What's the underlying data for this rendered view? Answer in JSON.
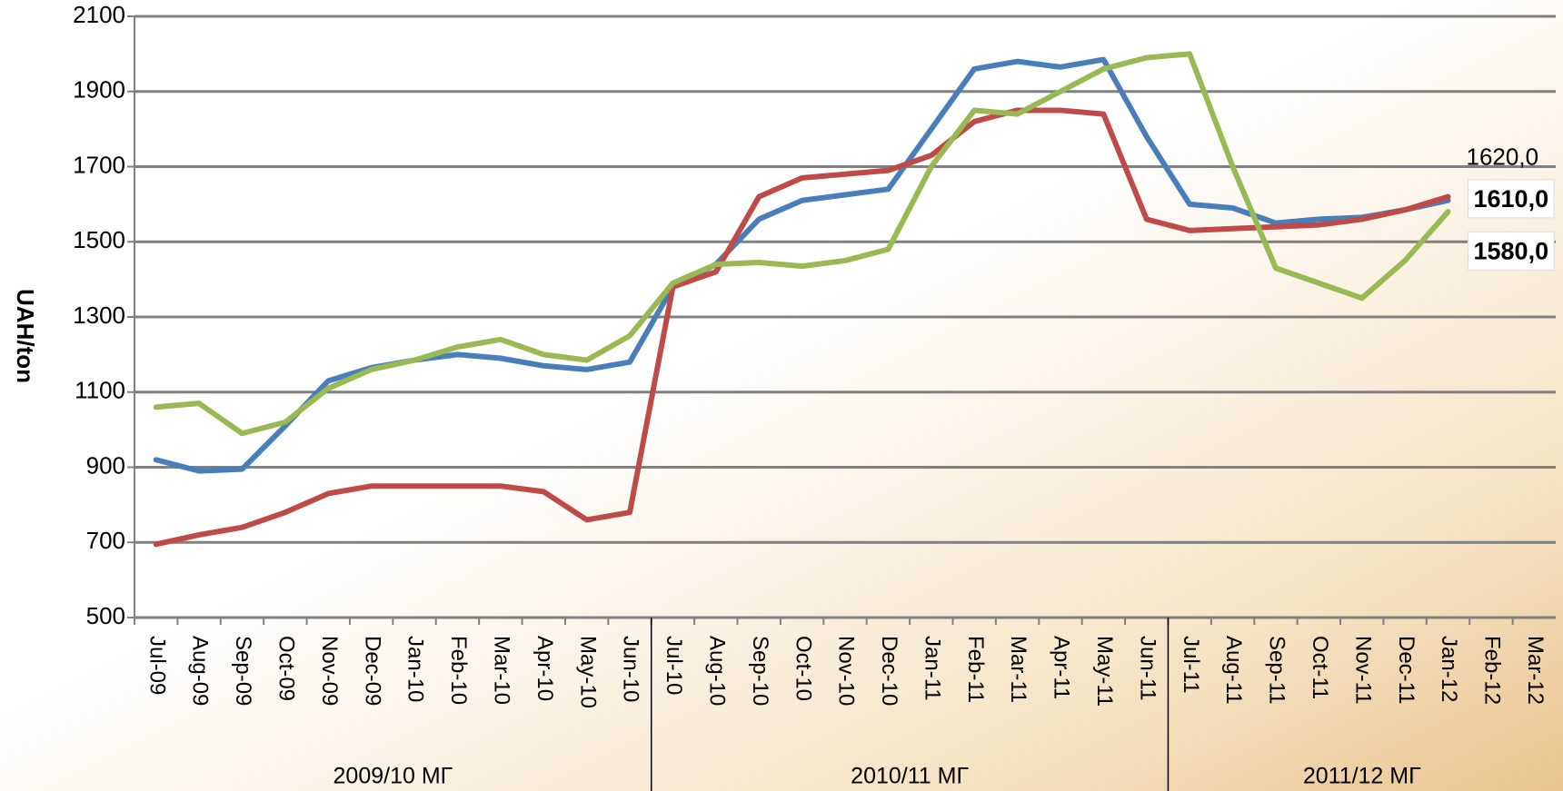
{
  "chart_data": {
    "type": "line",
    "y_label": "UAH/ton",
    "categories": [
      "Jul-09",
      "Aug-09",
      "Sep-09",
      "Oct-09",
      "Nov-09",
      "Dec-09",
      "Jan-10",
      "Feb-10",
      "Mar-10",
      "Apr-10",
      "May-10",
      "Jun-10",
      "Jul-10",
      "Aug-10",
      "Sep-10",
      "Oct-10",
      "Nov-10",
      "Dec-10",
      "Jan-11",
      "Feb-11",
      "Mar-11",
      "Apr-11",
      "May-11",
      "Jun-11",
      "Jul-11",
      "Aug-11",
      "Sep-11",
      "Oct-11",
      "Nov-11",
      "Dec-11",
      "Jan-12",
      "Feb-12",
      "Mar-12"
    ],
    "groups": [
      "2009/10 МГ",
      "2010/11 МГ",
      "2011/12 МГ"
    ],
    "series": [
      {
        "color": "#4a7ebb",
        "values": [
          920,
          890,
          895,
          1010,
          1130,
          1165,
          1185,
          1200,
          1190,
          1170,
          1160,
          1180,
          1380,
          1440,
          1560,
          1610,
          1625,
          1640,
          1800,
          1960,
          1980,
          1965,
          1985,
          1780,
          1600,
          1590,
          1550,
          1560,
          1565,
          1585,
          1610,
          null,
          null
        ],
        "value_labels": {
          "30": "1610,0"
        }
      },
      {
        "color": "#be4b48",
        "values": [
          695,
          720,
          740,
          780,
          830,
          850,
          850,
          850,
          850,
          835,
          760,
          780,
          1380,
          1420,
          1620,
          1670,
          1680,
          1690,
          1730,
          1820,
          1850,
          1850,
          1840,
          1560,
          1530,
          1535,
          1540,
          1545,
          1560,
          1585,
          1620,
          null,
          null
        ],
        "value_labels": {
          "30": "1620,0"
        }
      },
      {
        "color": "#98b954",
        "values": [
          1060,
          1070,
          990,
          1020,
          1110,
          1160,
          1185,
          1220,
          1240,
          1200,
          1185,
          1250,
          1390,
          1440,
          1445,
          1435,
          1450,
          1480,
          1700,
          1850,
          1840,
          1900,
          1960,
          1990,
          2000,
          1700,
          1430,
          1390,
          1350,
          1450,
          1580,
          null,
          null
        ],
        "value_labels": {
          "30": "1580,0"
        }
      }
    ],
    "ylim": [
      500,
      2100
    ],
    "yticks": [
      500,
      700,
      900,
      1100,
      1300,
      1500,
      1700,
      1900,
      2100
    ],
    "grid": true
  }
}
